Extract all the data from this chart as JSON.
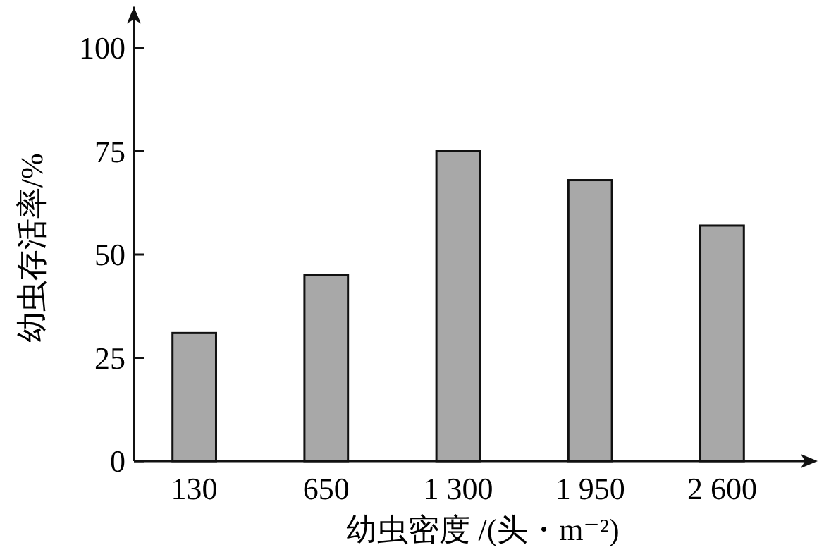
{
  "chart_data": {
    "type": "bar",
    "xlabel": "幼虫密度 /(头・m⁻²)",
    "ylabel": "幼虫存活率/%",
    "categories": [
      "130",
      "650",
      "1 300",
      "1 950",
      "2 600"
    ],
    "values": [
      31,
      45,
      75,
      68,
      57
    ],
    "color": "#a8a8a8",
    "ylim": [
      0,
      110
    ],
    "yticks": [
      0,
      25,
      50,
      75,
      100
    ],
    "grid": false
  }
}
